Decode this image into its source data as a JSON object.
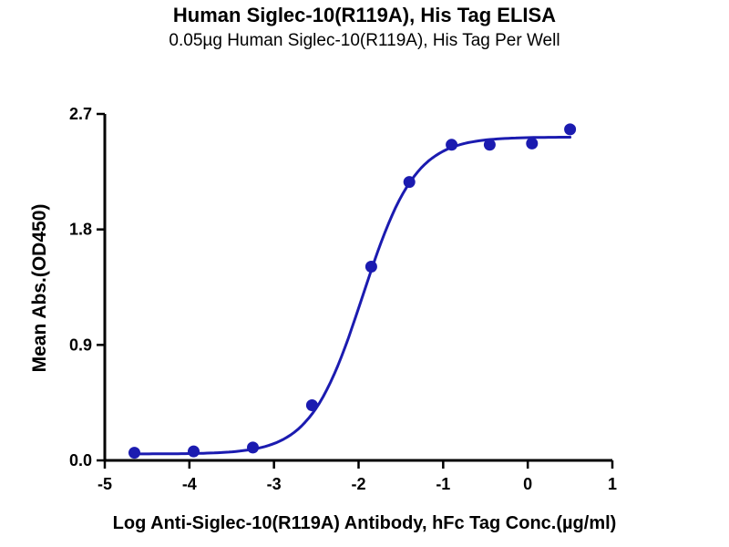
{
  "chart_data": {
    "type": "scatter",
    "title": "Human Siglec-10(R119A), His Tag ELISA",
    "subtitle": "0.05µg Human Siglec-10(R119A), His Tag Per Well",
    "xlabel": "Log Anti-Siglec-10(R119A) Antibody, hFc Tag Conc.(µg/ml)",
    "ylabel": "Mean Abs.(OD450)",
    "xlim": [
      -5,
      1
    ],
    "ylim": [
      0,
      2.7
    ],
    "xticks": [
      -5,
      -4,
      -3,
      -2,
      -1,
      0,
      1
    ],
    "xtick_labels": [
      "-5",
      "-4",
      "-3",
      "-2",
      "-1",
      "0",
      "1"
    ],
    "yticks": [
      0,
      0.9,
      1.8,
      2.7
    ],
    "ytick_labels": [
      "0.0",
      "0.9",
      "1.8",
      "2.7"
    ],
    "series": [
      {
        "name": "Anti-Siglec-10(R119A) Antibody, hFc Tag",
        "x": [
          -4.65,
          -3.95,
          -3.25,
          -2.55,
          -1.85,
          -1.4,
          -0.9,
          -0.45,
          0.05,
          0.5
        ],
        "y": [
          0.06,
          0.07,
          0.1,
          0.43,
          1.51,
          2.17,
          2.46,
          2.46,
          2.47,
          2.58
        ]
      }
    ],
    "fit": {
      "model": "4PL sigmoid",
      "bottom": 0.05,
      "top": 2.52,
      "logEC50": -1.95,
      "hill": 1.4,
      "x_start": -4.65,
      "x_end": 0.5
    },
    "point_color": "#1b1bb0",
    "line_color": "#1b1bb0",
    "axis_color": "#000000",
    "grid": false,
    "legend": "none"
  }
}
